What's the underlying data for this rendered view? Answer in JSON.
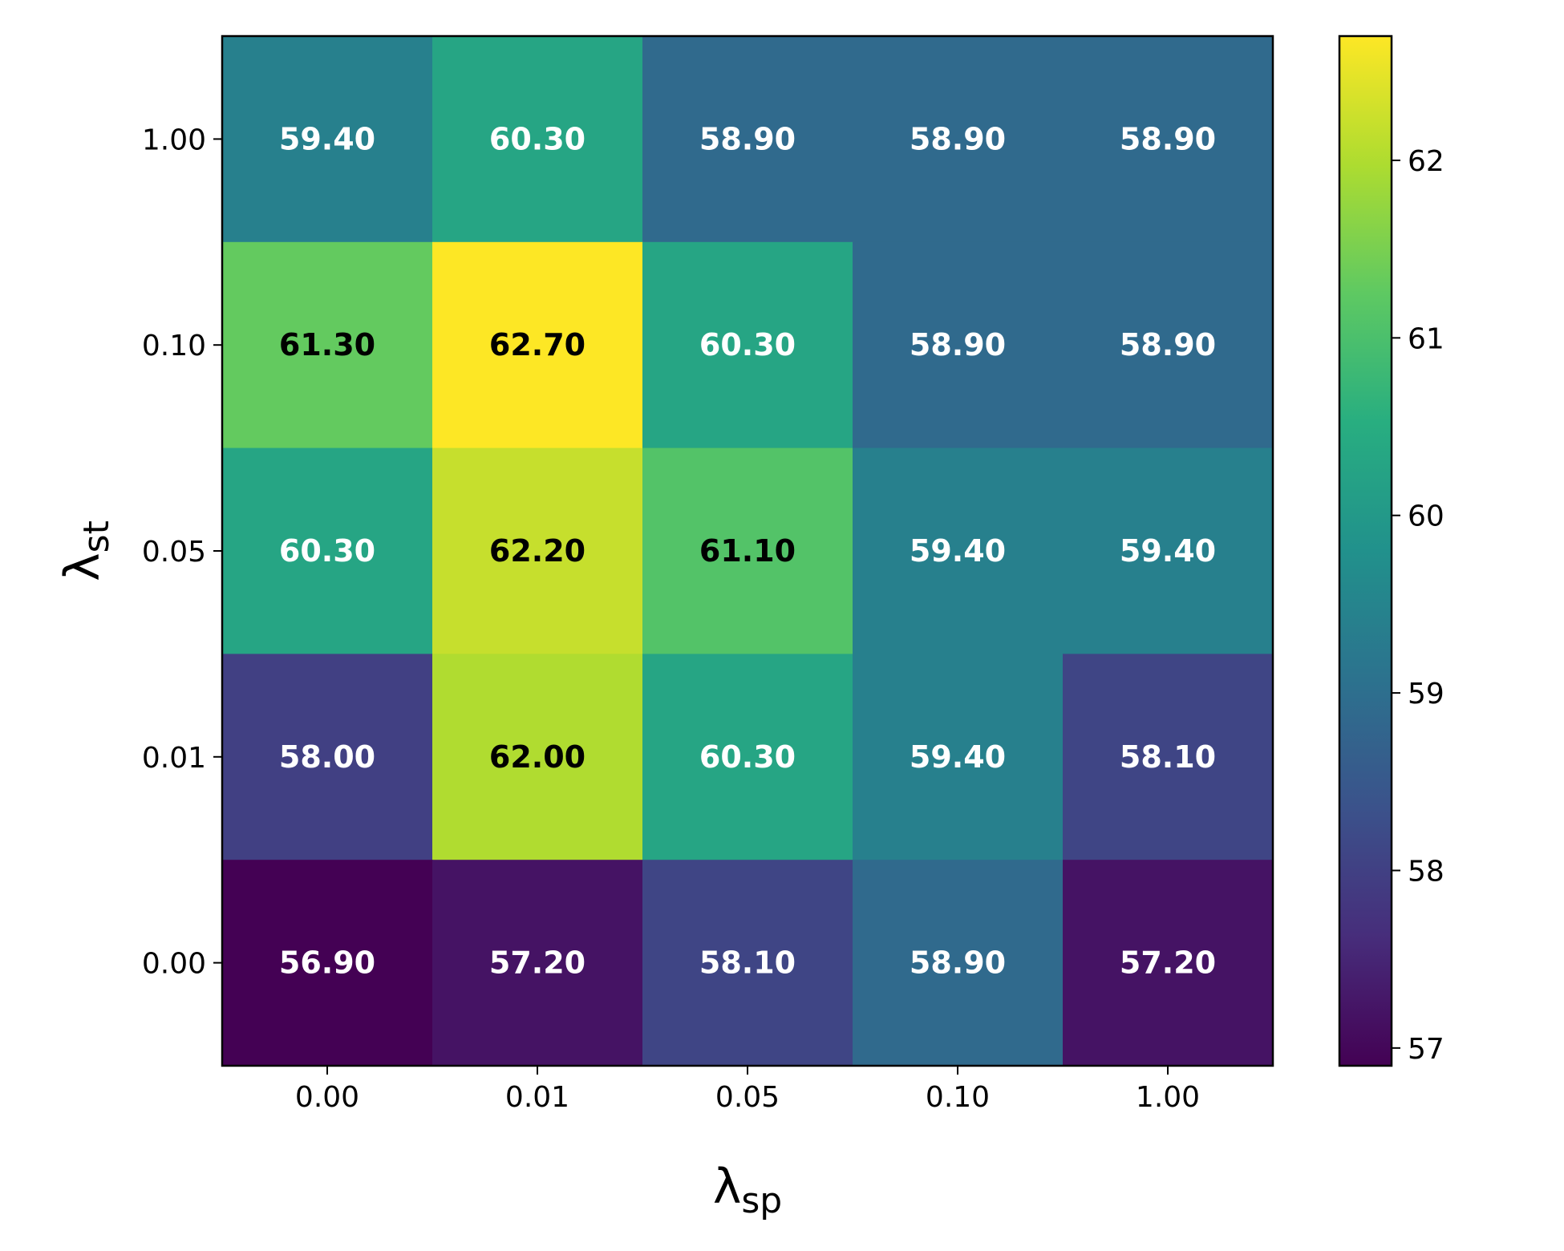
{
  "chart_data": {
    "type": "heatmap",
    "x_categories": [
      "0.00",
      "0.01",
      "0.05",
      "0.10",
      "1.00"
    ],
    "y_categories": [
      "1.00",
      "0.10",
      "0.05",
      "0.01",
      "0.00"
    ],
    "values": [
      [
        59.4,
        60.3,
        58.9,
        58.9,
        58.9
      ],
      [
        61.3,
        62.7,
        60.3,
        58.9,
        58.9
      ],
      [
        60.3,
        62.2,
        61.1,
        59.4,
        59.4
      ],
      [
        58.0,
        62.0,
        60.3,
        59.4,
        58.1
      ],
      [
        56.9,
        57.2,
        58.1,
        58.9,
        57.2
      ]
    ],
    "xlabel": {
      "symbol": "λ",
      "subscript": "sp"
    },
    "ylabel": {
      "symbol": "λ",
      "subscript": "st"
    },
    "colormap": "viridis",
    "colorbar": {
      "range": [
        56.9,
        62.7
      ],
      "ticks": [
        57,
        58,
        59,
        60,
        61,
        62
      ]
    },
    "annotation_format": "2 decimals, bold",
    "annotation_colors": {
      "dark_cell": "#ffffff",
      "light_cell": "#000000"
    }
  }
}
